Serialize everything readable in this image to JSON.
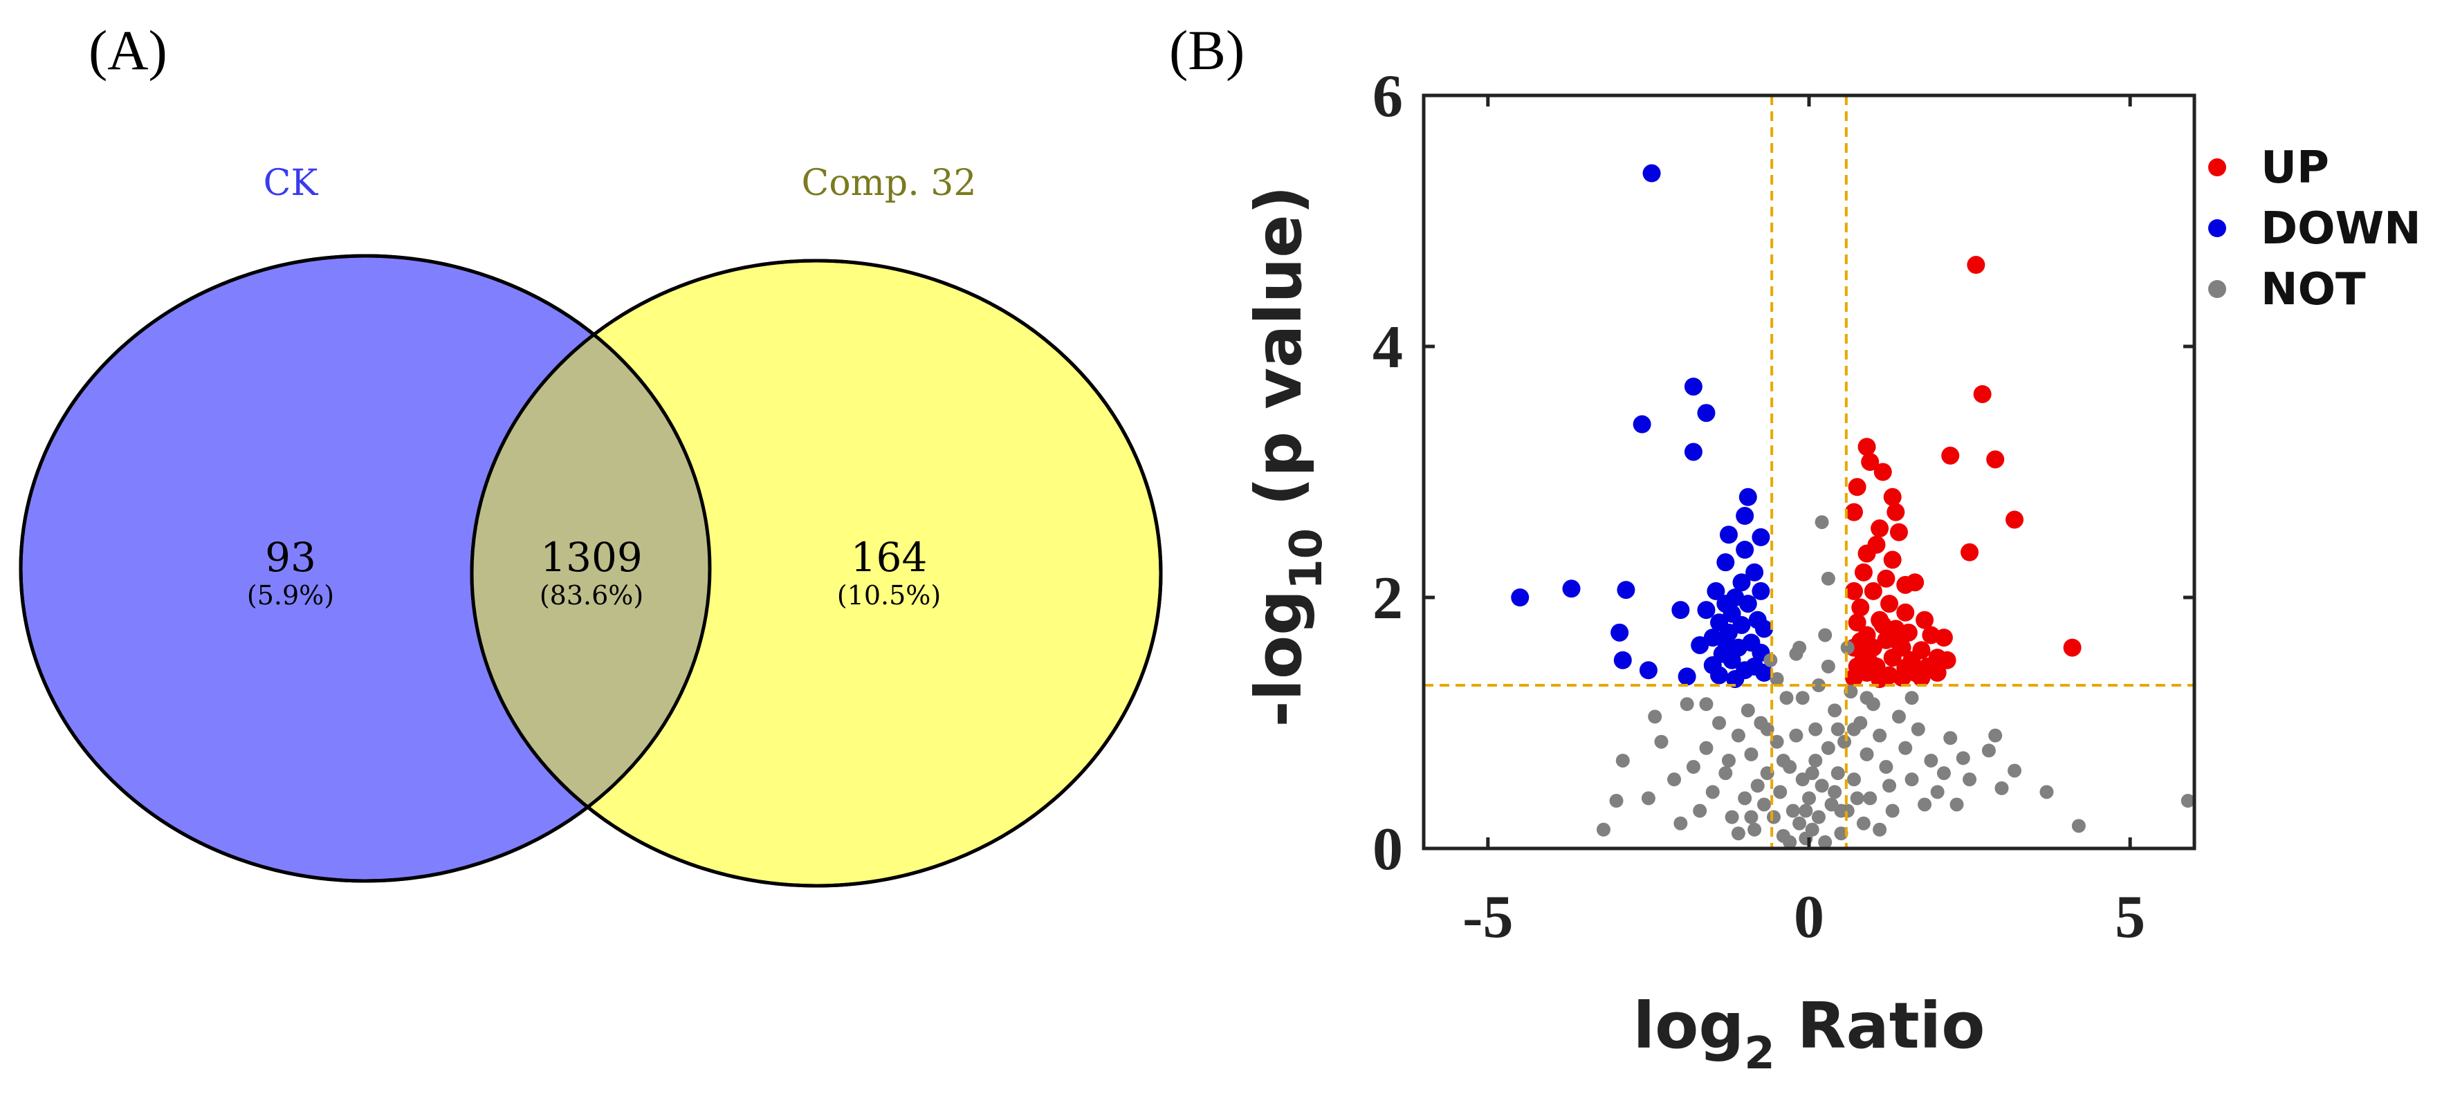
{
  "panels": {
    "a_label": "(A)",
    "b_label": "(B)"
  },
  "colors": {
    "ck_fill": "#8080ff",
    "comp_fill": "#ffff80",
    "overlap_fill": "#bdbd8a",
    "ck_title": "#3a3af0",
    "comp_title": "#7a7a20",
    "up": "#ee0000",
    "down": "#0000e0",
    "not": "#808080",
    "threshold": "#e8a800"
  },
  "chart_data": [
    {
      "type": "venn",
      "sets": [
        {
          "name": "CK",
          "only_count": "93",
          "only_pct": "(5.9%)"
        },
        {
          "name": "Comp. 32",
          "only_count": "164",
          "only_pct": "(10.5%)"
        }
      ],
      "intersection": {
        "count": "1309",
        "pct": "(83.6%)"
      }
    },
    {
      "type": "scatter",
      "title": "",
      "xlabel": {
        "main": "log",
        "sub": "2",
        "rest": " Ratio"
      },
      "ylabel": {
        "main": "-log",
        "sub": "10",
        "rest": " (p value)"
      },
      "xlim": [
        -6,
        6
      ],
      "ylim": [
        0,
        6
      ],
      "xticks": [
        -5,
        0,
        5
      ],
      "xtick_labels": [
        "-5",
        "0",
        "5"
      ],
      "yticks": [
        0,
        2,
        4,
        6
      ],
      "ytick_labels": [
        "0",
        "2",
        "4",
        "6"
      ],
      "thresholds": {
        "fold_change_log2": [
          -0.58,
          0.58
        ],
        "neg_log10_p": 1.3
      },
      "legend": {
        "position": "right",
        "entries": [
          {
            "key": "up",
            "label": "UP"
          },
          {
            "key": "down",
            "label": "DOWN"
          },
          {
            "key": "not",
            "label": "NOT"
          }
        ]
      },
      "series": [
        {
          "name": "UP",
          "key": "up",
          "points": [
            [
              2.6,
              4.65
            ],
            [
              2.7,
              3.62
            ],
            [
              2.9,
              3.1
            ],
            [
              3.2,
              2.62
            ],
            [
              2.2,
              3.13
            ],
            [
              2.5,
              2.36
            ],
            [
              4.1,
              1.6
            ],
            [
              0.9,
              3.2
            ],
            [
              0.95,
              3.08
            ],
            [
              1.15,
              3.0
            ],
            [
              0.75,
              2.88
            ],
            [
              1.3,
              2.8
            ],
            [
              1.35,
              2.68
            ],
            [
              0.7,
              2.68
            ],
            [
              1.1,
              2.55
            ],
            [
              1.4,
              2.52
            ],
            [
              0.9,
              2.35
            ],
            [
              1.05,
              2.42
            ],
            [
              1.3,
              2.3
            ],
            [
              0.85,
              2.2
            ],
            [
              1.2,
              2.15
            ],
            [
              1.5,
              2.1
            ],
            [
              0.7,
              2.05
            ],
            [
              1.0,
              2.05
            ],
            [
              1.25,
              1.95
            ],
            [
              1.65,
              2.12
            ],
            [
              0.8,
              1.92
            ],
            [
              1.5,
              1.88
            ],
            [
              1.8,
              1.82
            ],
            [
              0.75,
              1.8
            ],
            [
              1.1,
              1.82
            ],
            [
              1.35,
              1.75
            ],
            [
              1.55,
              1.72
            ],
            [
              1.9,
              1.7
            ],
            [
              2.1,
              1.68
            ],
            [
              0.9,
              1.7
            ],
            [
              1.2,
              1.66
            ],
            [
              0.7,
              1.6
            ],
            [
              1.0,
              1.6
            ],
            [
              1.45,
              1.6
            ],
            [
              1.75,
              1.58
            ],
            [
              0.85,
              1.52
            ],
            [
              1.3,
              1.52
            ],
            [
              1.6,
              1.5
            ],
            [
              2.0,
              1.52
            ],
            [
              2.15,
              1.5
            ],
            [
              0.75,
              1.45
            ],
            [
              1.05,
              1.45
            ],
            [
              1.5,
              1.44
            ],
            [
              1.85,
              1.45
            ],
            [
              0.9,
              1.4
            ],
            [
              1.25,
              1.38
            ],
            [
              1.65,
              1.4
            ],
            [
              0.7,
              1.36
            ],
            [
              1.1,
              1.35
            ],
            [
              1.45,
              1.36
            ],
            [
              1.75,
              1.36
            ],
            [
              2.0,
              1.4
            ],
            [
              0.95,
              1.48
            ],
            [
              1.4,
              1.64
            ],
            [
              1.15,
              1.78
            ],
            [
              0.8,
              1.65
            ]
          ]
        },
        {
          "name": "DOWN",
          "key": "down",
          "points": [
            [
              -2.45,
              5.38
            ],
            [
              -1.8,
              3.68
            ],
            [
              -1.6,
              3.47
            ],
            [
              -2.6,
              3.38
            ],
            [
              -1.8,
              3.16
            ],
            [
              -0.95,
              2.8
            ],
            [
              -1.0,
              2.65
            ],
            [
              -1.25,
              2.5
            ],
            [
              -1.0,
              2.38
            ],
            [
              -0.75,
              2.48
            ],
            [
              -4.5,
              2.0
            ],
            [
              -3.7,
              2.07
            ],
            [
              -2.85,
              2.06
            ],
            [
              -1.3,
              2.28
            ],
            [
              -0.85,
              2.2
            ],
            [
              -1.05,
              2.12
            ],
            [
              -1.45,
              2.05
            ],
            [
              -0.75,
              2.05
            ],
            [
              -1.15,
              2.0
            ],
            [
              -1.3,
              1.95
            ],
            [
              -0.95,
              1.95
            ],
            [
              -1.6,
              1.9
            ],
            [
              -2.0,
              1.9
            ],
            [
              -1.2,
              1.87
            ],
            [
              -0.8,
              1.82
            ],
            [
              -1.4,
              1.8
            ],
            [
              -1.05,
              1.78
            ],
            [
              -1.25,
              1.72
            ],
            [
              -0.7,
              1.75
            ],
            [
              -1.5,
              1.68
            ],
            [
              -1.3,
              1.65
            ],
            [
              -0.9,
              1.64
            ],
            [
              -2.95,
              1.72
            ],
            [
              -1.1,
              1.6
            ],
            [
              -1.7,
              1.62
            ],
            [
              -1.35,
              1.55
            ],
            [
              -0.75,
              1.56
            ],
            [
              -1.2,
              1.5
            ],
            [
              -2.9,
              1.5
            ],
            [
              -2.5,
              1.42
            ],
            [
              -1.5,
              1.46
            ],
            [
              -0.85,
              1.45
            ],
            [
              -1.9,
              1.37
            ],
            [
              -1.0,
              1.42
            ],
            [
              -1.4,
              1.38
            ],
            [
              -0.7,
              1.4
            ],
            [
              -1.15,
              1.35
            ]
          ]
        },
        {
          "name": "NOT",
          "key": "not",
          "points": [
            [
              5.9,
              0.38
            ],
            [
              4.2,
              0.18
            ],
            [
              3.7,
              0.45
            ],
            [
              3.2,
              0.62
            ],
            [
              3.0,
              0.48
            ],
            [
              2.8,
              0.78
            ],
            [
              2.9,
              0.9
            ],
            [
              2.5,
              0.55
            ],
            [
              2.4,
              0.72
            ],
            [
              2.2,
              0.88
            ],
            [
              2.1,
              0.6
            ],
            [
              2.0,
              0.45
            ],
            [
              1.9,
              0.7
            ],
            [
              1.8,
              0.35
            ],
            [
              1.7,
              0.95
            ],
            [
              1.6,
              0.55
            ],
            [
              1.5,
              0.8
            ],
            [
              1.4,
              1.05
            ],
            [
              1.3,
              0.3
            ],
            [
              1.2,
              0.65
            ],
            [
              1.1,
              0.9
            ],
            [
              1.0,
              1.15
            ],
            [
              0.95,
              0.4
            ],
            [
              0.9,
              0.75
            ],
            [
              0.85,
              0.2
            ],
            [
              0.8,
              1.0
            ],
            [
              0.7,
              0.55
            ],
            [
              0.65,
              1.25
            ],
            [
              0.6,
              0.3
            ],
            [
              0.55,
              0.85
            ],
            [
              0.5,
              0.12
            ],
            [
              0.45,
              0.6
            ],
            [
              0.4,
              1.1
            ],
            [
              0.35,
              0.35
            ],
            [
              0.3,
              0.8
            ],
            [
              0.25,
              0.05
            ],
            [
              0.2,
              0.5
            ],
            [
              0.15,
              0.25
            ],
            [
              0.1,
              0.7
            ],
            [
              0.05,
              0.15
            ],
            [
              0.0,
              0.4
            ],
            [
              -0.05,
              0.08
            ],
            [
              -0.1,
              0.55
            ],
            [
              -0.15,
              0.2
            ],
            [
              -0.2,
              0.9
            ],
            [
              -0.25,
              0.3
            ],
            [
              -0.3,
              0.65
            ],
            [
              -0.35,
              1.2
            ],
            [
              -0.4,
              0.1
            ],
            [
              -0.45,
              0.45
            ],
            [
              -0.5,
              0.85
            ],
            [
              -0.55,
              0.25
            ],
            [
              -0.6,
              1.5
            ],
            [
              -0.65,
              0.6
            ],
            [
              -0.7,
              0.35
            ],
            [
              -0.75,
              1.0
            ],
            [
              -0.8,
              0.5
            ],
            [
              -0.85,
              0.15
            ],
            [
              -0.9,
              0.75
            ],
            [
              -0.95,
              1.1
            ],
            [
              -1.0,
              0.4
            ],
            [
              -1.1,
              0.9
            ],
            [
              -1.2,
              0.25
            ],
            [
              -1.3,
              0.6
            ],
            [
              -1.4,
              1.0
            ],
            [
              -1.5,
              0.45
            ],
            [
              -1.6,
              0.8
            ],
            [
              -1.7,
              0.3
            ],
            [
              -1.8,
              0.65
            ],
            [
              -1.9,
              1.15
            ],
            [
              -2.0,
              0.2
            ],
            [
              -2.1,
              0.55
            ],
            [
              -2.3,
              0.85
            ],
            [
              -2.5,
              0.4
            ],
            [
              -2.9,
              0.7
            ],
            [
              -3.0,
              0.38
            ],
            [
              -3.2,
              0.15
            ],
            [
              -0.2,
              1.55
            ],
            [
              0.3,
              1.45
            ],
            [
              -0.5,
              1.35
            ],
            [
              0.6,
              1.6
            ],
            [
              0.15,
              1.3
            ],
            [
              -0.1,
              1.2
            ],
            [
              0.45,
              0.95
            ],
            [
              -0.3,
              0.05
            ],
            [
              0.05,
              0.6
            ],
            [
              -0.65,
              0.95
            ],
            [
              0.75,
              0.4
            ],
            [
              1.25,
              0.5
            ],
            [
              -1.25,
              0.7
            ],
            [
              0.2,
              2.6
            ],
            [
              0.3,
              2.15
            ],
            [
              0.25,
              1.7
            ],
            [
              -0.15,
              1.6
            ],
            [
              0.1,
              0.95
            ],
            [
              -0.4,
              0.7
            ],
            [
              0.5,
              0.3
            ],
            [
              0.9,
              1.2
            ],
            [
              -0.9,
              0.25
            ],
            [
              1.6,
              1.2
            ],
            [
              -1.6,
              1.15
            ],
            [
              2.3,
              0.35
            ],
            [
              -2.4,
              1.05
            ],
            [
              1.1,
              0.15
            ],
            [
              -1.1,
              0.12
            ],
            [
              0.4,
              0.45
            ],
            [
              -0.05,
              0.3
            ],
            [
              0.7,
              0.95
            ]
          ]
        }
      ]
    }
  ]
}
